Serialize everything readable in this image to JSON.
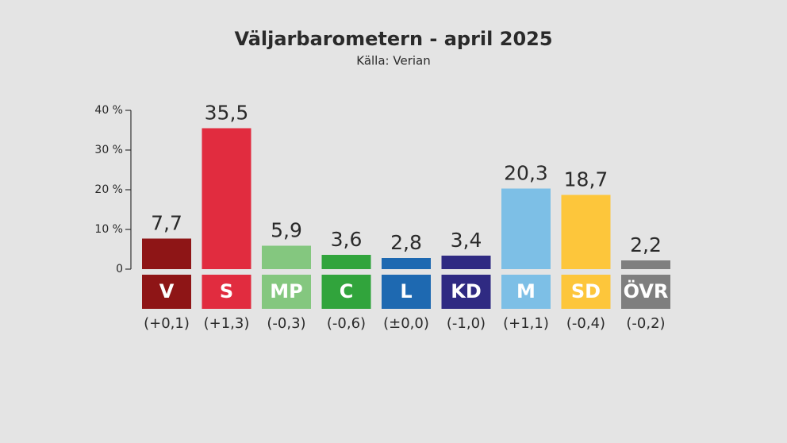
{
  "chart_data": {
    "type": "bar",
    "title": "Väljarbarometern - april 2025",
    "subtitle": "Källa: Verian",
    "categories": [
      "V",
      "S",
      "MP",
      "C",
      "L",
      "KD",
      "M",
      "SD",
      "ÖVR"
    ],
    "values": [
      7.7,
      35.5,
      5.9,
      3.6,
      2.8,
      3.4,
      20.3,
      18.7,
      2.2
    ],
    "value_labels": [
      "7,7",
      "35,5",
      "5,9",
      "3,6",
      "2,8",
      "3,4",
      "20,3",
      "18,7",
      "2,2"
    ],
    "colors": [
      "#8e1516",
      "#e12c3f",
      "#84c77f",
      "#31a43c",
      "#1e69b1",
      "#2f2a82",
      "#7dbfe6",
      "#fdc63b",
      "#7f7f7f"
    ],
    "changes": [
      {
        "value": 0.1,
        "label": "(+0,1)"
      },
      {
        "value": 1.3,
        "label": "(+1,3)"
      },
      {
        "value": -0.3,
        "label": "(-0,3)"
      },
      {
        "value": -0.6,
        "label": "(-0,6)"
      },
      {
        "value": 0.0,
        "label": "(±0,0)"
      },
      {
        "value": -1.0,
        "label": "(-1,0)"
      },
      {
        "value": 1.1,
        "label": "(+1,1)"
      },
      {
        "value": -0.4,
        "label": "(-0,4)"
      },
      {
        "value": -0.2,
        "label": "(-0,2)"
      }
    ],
    "ylim": [
      0,
      40
    ],
    "yticks": [
      0,
      {
        "value": 10,
        "label": "10 %"
      },
      {
        "value": 20,
        "label": "20 %"
      },
      {
        "value": 30,
        "label": "30 %"
      },
      {
        "value": 40,
        "label": "40 %"
      }
    ]
  }
}
